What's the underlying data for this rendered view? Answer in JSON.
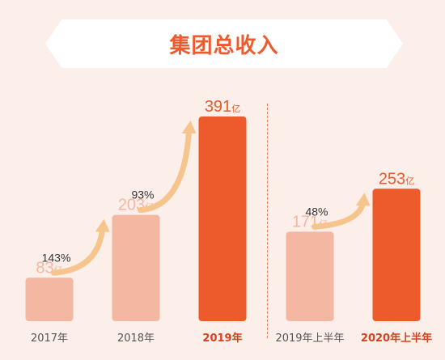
{
  "chart_data": {
    "type": "bar",
    "title": "集团总收入",
    "unit": "亿",
    "categories": [
      "2017年",
      "2018年",
      "2019年",
      "2019年上半年",
      "2020年上半年"
    ],
    "values": [
      83,
      203,
      391,
      171,
      253
    ],
    "growth": [
      {
        "from": "2017年",
        "to": "2018年",
        "label": "143%"
      },
      {
        "from": "2018年",
        "to": "2019年",
        "label": "93%"
      },
      {
        "from": "2019年上半年",
        "to": "2020年上半年",
        "label": "48%"
      }
    ],
    "highlight": [
      "2019年",
      "2020年上半年"
    ],
    "grid": false,
    "legend": "none"
  },
  "colors": {
    "background": "#fcefe9",
    "bar_light": "#f4b7a1",
    "bar_dark": "#ed5a2c",
    "value_light": "#f4b7a1",
    "value_dark": "#e65a2e",
    "arrow": "#f6c58e",
    "divider": "#ef7b56",
    "title": "#ec5a2d"
  }
}
